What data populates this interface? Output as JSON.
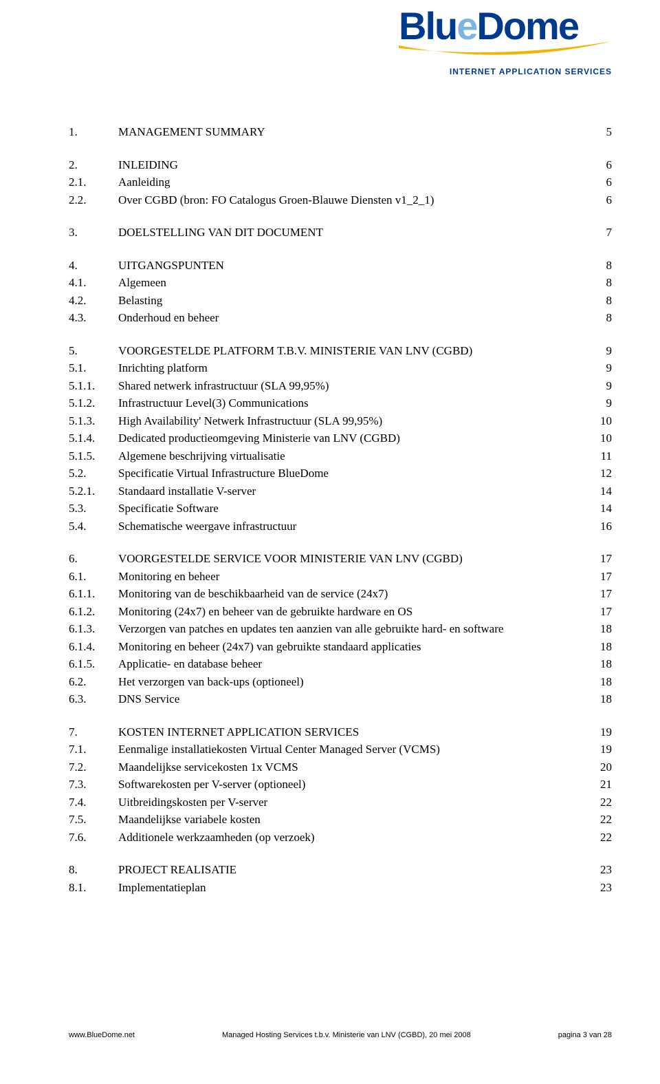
{
  "logo": {
    "text_blue": "Blu",
    "text_e": "e",
    "text_dome": "Dome",
    "subtitle": "INTERNET APPLICATION SERVICES",
    "swoosh_color": "#f2b400",
    "blue_color": "#003a8c",
    "lightblue_color": "#7db4e0"
  },
  "toc": [
    [
      {
        "num": "1.",
        "title": "MANAGEMENT SUMMARY",
        "page": "5",
        "caps": true
      }
    ],
    [
      {
        "num": "2.",
        "title": "INLEIDING",
        "page": "6",
        "caps": true
      },
      {
        "num": "2.1.",
        "title": "Aanleiding",
        "page": "6"
      },
      {
        "num": "2.2.",
        "title": "Over CGBD (bron: FO Catalogus Groen-Blauwe Diensten v1_2_1)",
        "page": "6"
      }
    ],
    [
      {
        "num": "3.",
        "title": "DOELSTELLING VAN DIT DOCUMENT",
        "page": "7",
        "caps": true
      }
    ],
    [
      {
        "num": "4.",
        "title": "UITGANGSPUNTEN",
        "page": "8",
        "caps": true
      },
      {
        "num": "4.1.",
        "title": "Algemeen",
        "page": "8"
      },
      {
        "num": "4.2.",
        "title": "Belasting",
        "page": "8"
      },
      {
        "num": "4.3.",
        "title": "Onderhoud en beheer",
        "page": "8"
      }
    ],
    [
      {
        "num": "5.",
        "title": "VOORGESTELDE PLATFORM T.B.V. MINISTERIE VAN LNV (CGBD)",
        "page": "9",
        "caps": true
      },
      {
        "num": "5.1.",
        "title": "Inrichting platform",
        "page": "9"
      },
      {
        "num": "5.1.1.",
        "title": "Shared netwerk infrastructuur (SLA 99,95%)",
        "page": "9"
      },
      {
        "num": "5.1.2.",
        "title": "Infrastructuur Level(3) Communications",
        "page": "9"
      },
      {
        "num": "5.1.3.",
        "title": "High Availability' Netwerk Infrastructuur (SLA 99,95%)",
        "page": "10"
      },
      {
        "num": "5.1.4.",
        "title": "Dedicated productieomgeving Ministerie van LNV (CGBD)",
        "page": "10"
      },
      {
        "num": "5.1.5.",
        "title": "Algemene beschrijving virtualisatie",
        "page": "11"
      },
      {
        "num": "5.2.",
        "title": "Specificatie Virtual Infrastructure BlueDome",
        "page": "12"
      },
      {
        "num": "5.2.1.",
        "title": "Standaard installatie V-server",
        "page": "14"
      },
      {
        "num": "5.3.",
        "title": "Specificatie Software",
        "page": "14"
      },
      {
        "num": "5.4.",
        "title": "Schematische weergave infrastructuur",
        "page": "16"
      }
    ],
    [
      {
        "num": "6.",
        "title": "VOORGESTELDE SERVICE VOOR MINISTERIE VAN LNV (CGBD)",
        "page": "17",
        "caps": true
      },
      {
        "num": "6.1.",
        "title": "Monitoring en beheer",
        "page": "17"
      },
      {
        "num": "6.1.1.",
        "title": "Monitoring van de beschikbaarheid van de service (24x7)",
        "page": "17"
      },
      {
        "num": "6.1.2.",
        "title": "Monitoring (24x7) en beheer van de gebruikte hardware en OS",
        "page": "17"
      },
      {
        "num": "6.1.3.",
        "title": "Verzorgen van patches en updates ten aanzien van alle gebruikte hard- en software",
        "page": "18"
      },
      {
        "num": "6.1.4.",
        "title": "Monitoring en beheer (24x7) van gebruikte standaard applicaties",
        "page": "18"
      },
      {
        "num": "6.1.5.",
        "title": "Applicatie- en database beheer",
        "page": "18"
      },
      {
        "num": "6.2.",
        "title": "Het verzorgen van back-ups (optioneel)",
        "page": "18"
      },
      {
        "num": "6.3.",
        "title": "DNS Service",
        "page": "18"
      }
    ],
    [
      {
        "num": "7.",
        "title": "KOSTEN INTERNET APPLICATION SERVICES",
        "page": "19",
        "caps": true
      },
      {
        "num": "7.1.",
        "title": "Eenmalige installatiekosten Virtual Center Managed Server (VCMS)",
        "page": "19"
      },
      {
        "num": "7.2.",
        "title": "Maandelijkse servicekosten 1x VCMS",
        "page": "20"
      },
      {
        "num": "7.3.",
        "title": "Softwarekosten per V-server (optioneel)",
        "page": "21"
      },
      {
        "num": "7.4.",
        "title": "Uitbreidingskosten per V-server",
        "page": "22"
      },
      {
        "num": "7.5.",
        "title": "Maandelijkse variabele kosten",
        "page": "22"
      },
      {
        "num": "7.6.",
        "title": "Additionele werkzaamheden (op verzoek)",
        "page": "22"
      }
    ],
    [
      {
        "num": "8.",
        "title": "PROJECT REALISATIE",
        "page": "23",
        "caps": true
      },
      {
        "num": "8.1.",
        "title": "Implementatieplan",
        "page": "23"
      }
    ]
  ],
  "footer": {
    "left": "www.BlueDome.net",
    "center": "Managed Hosting Services t.b.v. Ministerie van LNV (CGBD), 20 mei 2008",
    "right": "pagina 3 van 28"
  }
}
